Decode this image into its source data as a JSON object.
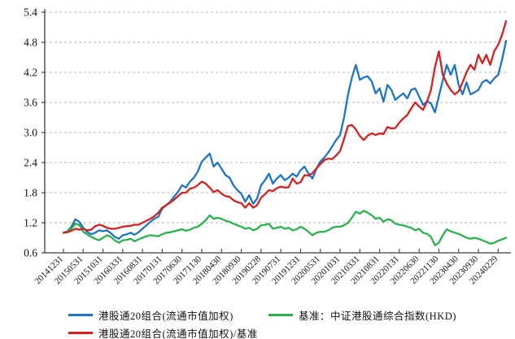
{
  "chart_data": {
    "type": "line",
    "title": "",
    "xlabel": "",
    "ylabel": "",
    "ylim": [
      0.6,
      5.4
    ],
    "y_tick_labels": [
      "5.4",
      "4.8",
      "4.2",
      "3.6",
      "3.0",
      "2.4",
      "1.8",
      "1.2",
      "0.6"
    ],
    "y_tick_values": [
      5.4,
      4.8,
      4.2,
      3.6,
      3.0,
      2.4,
      1.8,
      1.2,
      0.6
    ],
    "x_tick_labels": [
      "20141231",
      "20150531",
      "20151031",
      "20160331",
      "20160831",
      "20170131",
      "20170630",
      "20171130",
      "20180430",
      "20180930",
      "20190228",
      "20190731",
      "20191231",
      "20200531",
      "20201031",
      "20210331",
      "20210831",
      "20220131",
      "20220630",
      "20221130",
      "20230430",
      "20230930",
      "20240229"
    ],
    "months_between_ticks": 5,
    "grid": "horizontal-dashed",
    "legend_position": "bottom",
    "axis_color": "#3f3f3f",
    "grid_color": "#b3b3b3",
    "series": [
      {
        "name": "港股通20组合(流通市值加权)",
        "color": "#1E74C4",
        "values": [
          1.0,
          1.03,
          1.12,
          1.27,
          1.22,
          1.1,
          1.02,
          0.97,
          1.0,
          1.05,
          1.03,
          1.05,
          0.99,
          0.92,
          0.88,
          0.95,
          0.97,
          1.0,
          0.96,
          1.01,
          1.08,
          1.15,
          1.22,
          1.28,
          1.32,
          1.48,
          1.55,
          1.62,
          1.72,
          1.82,
          1.95,
          1.9,
          2.02,
          2.1,
          2.22,
          2.42,
          2.5,
          2.58,
          2.32,
          2.4,
          2.28,
          2.15,
          2.1,
          1.95,
          1.85,
          1.78,
          1.62,
          1.75,
          1.58,
          1.68,
          1.95,
          2.05,
          2.18,
          1.98,
          2.08,
          2.15,
          2.05,
          2.1,
          2.18,
          2.12,
          2.25,
          2.32,
          2.18,
          2.08,
          2.28,
          2.42,
          2.5,
          2.6,
          2.72,
          2.85,
          2.95,
          3.3,
          3.75,
          4.1,
          4.35,
          4.05,
          4.1,
          4.12,
          4.02,
          3.78,
          3.88,
          3.62,
          3.95,
          3.85,
          3.65,
          3.72,
          3.78,
          3.68,
          3.85,
          3.88,
          3.72,
          3.55,
          3.62,
          3.58,
          3.4,
          3.72,
          4.05,
          4.35,
          4.15,
          4.35,
          3.95,
          3.76,
          4.0,
          3.76,
          3.8,
          3.85,
          4.0,
          4.05,
          3.98,
          4.08,
          4.15,
          4.45,
          4.83
        ]
      },
      {
        "name": "基准：中证港股通综合指数(HKD)",
        "color": "#2BB14C",
        "values": [
          1.0,
          1.02,
          1.08,
          1.18,
          1.16,
          1.02,
          0.97,
          0.92,
          0.88,
          0.85,
          0.9,
          0.95,
          0.92,
          0.85,
          0.8,
          0.85,
          0.86,
          0.88,
          0.83,
          0.87,
          0.9,
          0.93,
          0.95,
          0.94,
          0.93,
          0.97,
          1.0,
          1.01,
          1.03,
          1.05,
          1.07,
          1.04,
          1.06,
          1.1,
          1.12,
          1.18,
          1.25,
          1.35,
          1.28,
          1.3,
          1.28,
          1.24,
          1.22,
          1.18,
          1.15,
          1.12,
          1.08,
          1.1,
          1.05,
          1.08,
          1.15,
          1.16,
          1.18,
          1.08,
          1.1,
          1.12,
          1.08,
          1.1,
          1.05,
          1.07,
          1.12,
          1.08,
          1.02,
          0.95,
          1.0,
          1.02,
          1.02,
          1.05,
          1.1,
          1.12,
          1.12,
          1.15,
          1.2,
          1.3,
          1.42,
          1.38,
          1.44,
          1.4,
          1.35,
          1.28,
          1.3,
          1.22,
          1.27,
          1.25,
          1.18,
          1.16,
          1.15,
          1.12,
          1.1,
          1.05,
          1.08,
          1.0,
          0.98,
          0.92,
          0.75,
          0.8,
          0.95,
          1.07,
          1.03,
          1.0,
          0.98,
          0.94,
          0.9,
          0.88,
          0.9,
          0.88,
          0.85,
          0.82,
          0.78,
          0.8,
          0.84,
          0.87,
          0.9
        ]
      },
      {
        "name": "港股通20组合(流通市值加权)/基准",
        "color": "#D32020",
        "values": [
          1.0,
          1.01,
          1.04,
          1.08,
          1.06,
          1.08,
          1.05,
          1.06,
          1.13,
          1.16,
          1.14,
          1.1,
          1.08,
          1.08,
          1.1,
          1.12,
          1.13,
          1.14,
          1.16,
          1.16,
          1.2,
          1.24,
          1.28,
          1.33,
          1.4,
          1.5,
          1.55,
          1.6,
          1.66,
          1.73,
          1.8,
          1.8,
          1.88,
          1.9,
          1.95,
          2.02,
          1.98,
          1.9,
          1.81,
          1.85,
          1.78,
          1.73,
          1.72,
          1.65,
          1.61,
          1.59,
          1.5,
          1.59,
          1.5,
          1.55,
          1.7,
          1.77,
          1.85,
          1.83,
          1.89,
          1.92,
          1.9,
          1.91,
          2.08,
          1.98,
          2.01,
          2.15,
          2.14,
          2.19,
          2.28,
          2.37,
          2.45,
          2.48,
          2.47,
          2.54,
          2.63,
          2.87,
          3.13,
          3.15,
          3.06,
          2.93,
          2.85,
          2.94,
          2.98,
          2.95,
          2.98,
          2.97,
          3.11,
          3.08,
          3.09,
          3.2,
          3.28,
          3.35,
          3.48,
          3.6,
          3.52,
          3.45,
          3.62,
          3.85,
          4.3,
          4.62,
          4.15,
          3.98,
          3.85,
          3.76,
          3.82,
          4.0,
          4.2,
          4.35,
          4.25,
          4.55,
          4.38,
          4.55,
          4.35,
          4.62,
          4.75,
          4.95,
          5.22
        ]
      }
    ]
  },
  "legend": {
    "row1_item1": "港股通20组合(流通市值加权)",
    "row1_item2": "基准：中证港股通综合指数(HKD)",
    "row2_item1": "港股通20组合(流通市值加权)/基准"
  }
}
